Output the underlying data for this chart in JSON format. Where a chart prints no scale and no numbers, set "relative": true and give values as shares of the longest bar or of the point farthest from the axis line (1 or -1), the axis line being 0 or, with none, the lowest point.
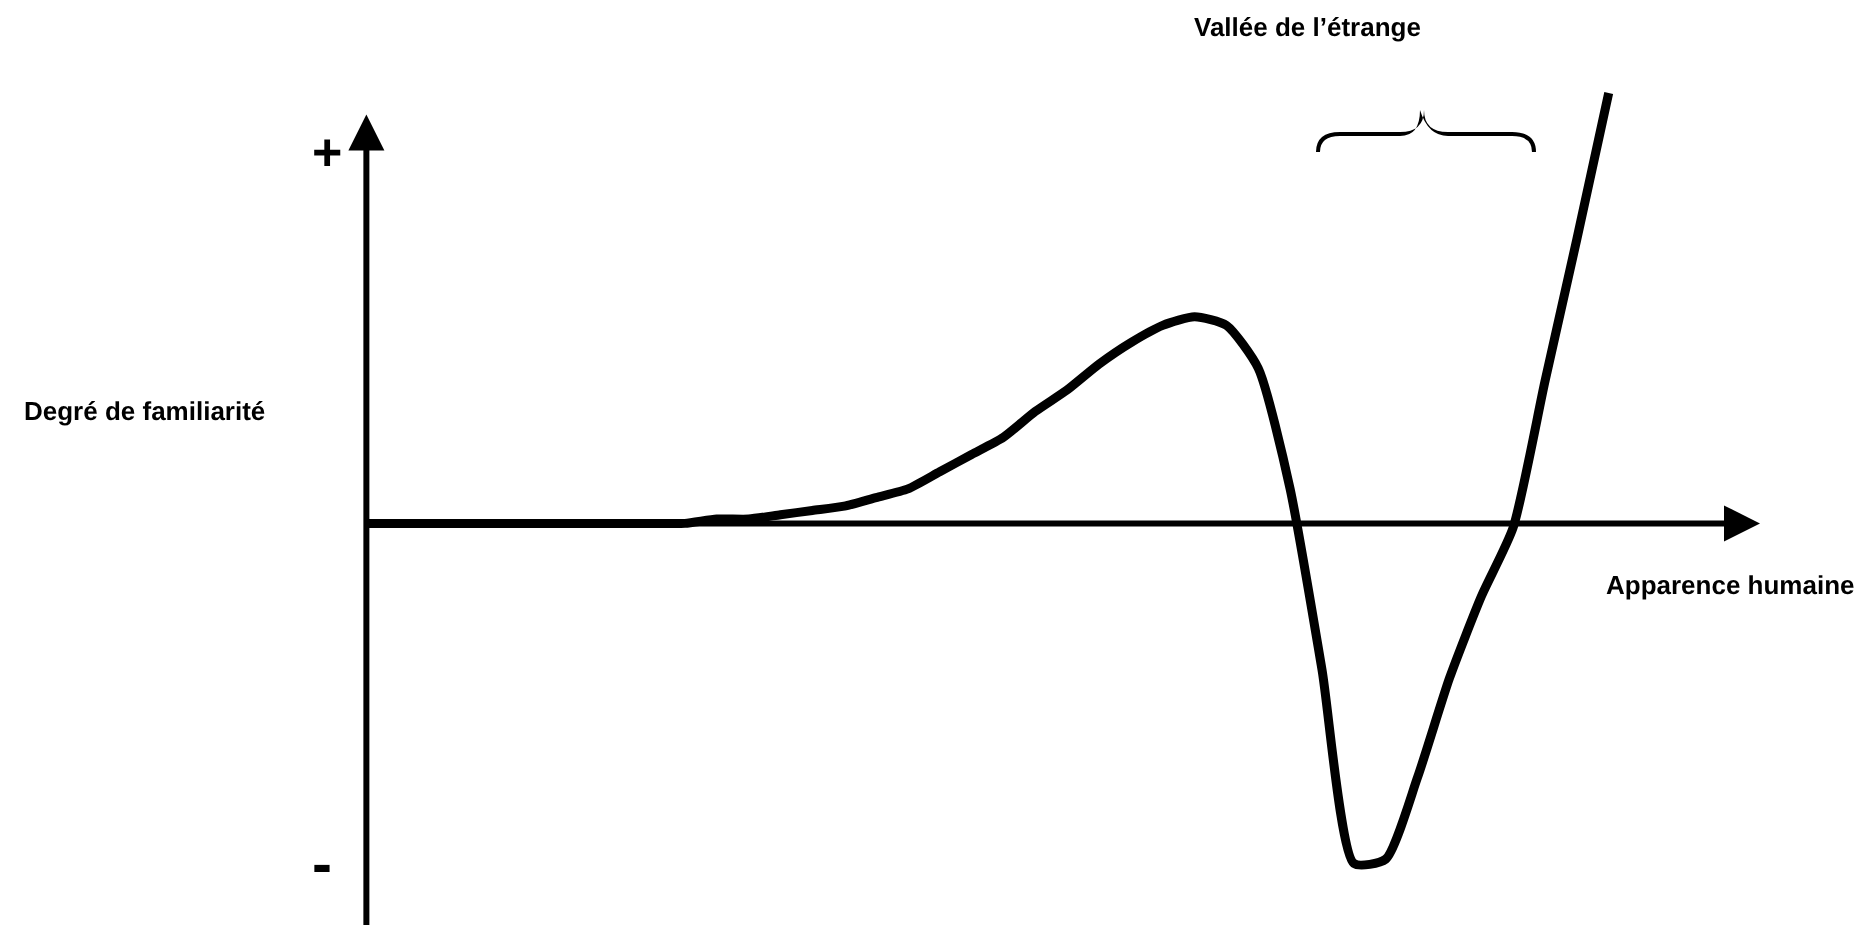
{
  "chart_data": {
    "type": "line",
    "relative": true,
    "xlabel": "Apparence humaine",
    "ylabel": "Degré de familiarité",
    "color": "#000000",
    "line_style": "solid",
    "categories": [
      null,
      null,
      null,
      null,
      null,
      null,
      null,
      null,
      null,
      null,
      null,
      null,
      null,
      null,
      null,
      null,
      null,
      null,
      null,
      null,
      null,
      null,
      null,
      null,
      null,
      null,
      null,
      null,
      null,
      null,
      null,
      null,
      null,
      null,
      null,
      null,
      null,
      null,
      null,
      null
    ],
    "values": [
      0,
      0,
      0,
      0,
      0,
      0,
      0,
      0,
      0,
      0,
      0,
      0.01,
      0.01,
      0.02,
      0.03,
      0.04,
      0.06,
      0.08,
      0.12,
      0.16,
      0.2,
      0.26,
      0.31,
      0.37,
      0.42,
      0.46,
      0.48,
      0.46,
      0.36,
      0.08,
      -0.34,
      -0.79,
      -0.78,
      -0.59,
      -0.36,
      -0.17,
      -0.01,
      0.33,
      0.66,
      1
    ],
    "annotations": [
      "+",
      "-",
      "Vallée de l’étrange"
    ]
  }
}
